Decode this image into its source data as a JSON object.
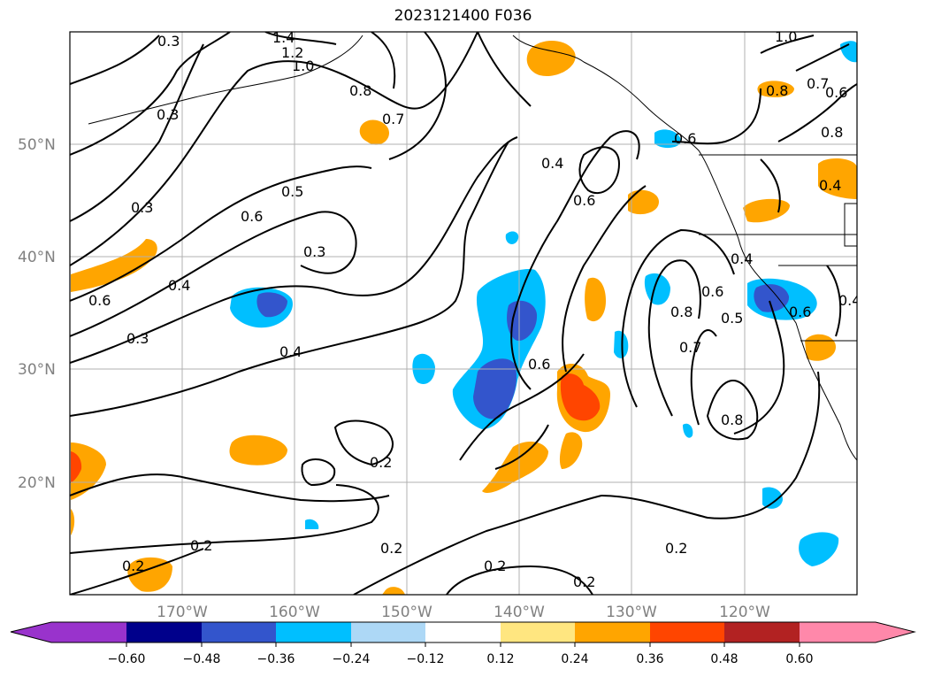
{
  "title": "2023121400 F036",
  "map": {
    "lat_labels": [
      "50°N",
      "40°N",
      "30°N",
      "20°N"
    ],
    "lon_labels": [
      "170°W",
      "160°W",
      "150°W",
      "140°W",
      "130°W",
      "120°W"
    ],
    "contour_labels": [
      {
        "text": "0.3"
      },
      {
        "text": "1.4"
      },
      {
        "text": "1.2"
      },
      {
        "text": "1.0"
      },
      {
        "text": "0.8"
      },
      {
        "text": "0.7"
      },
      {
        "text": "0.3"
      },
      {
        "text": "0.5"
      },
      {
        "text": "0.6"
      },
      {
        "text": "0.3"
      },
      {
        "text": "0.3"
      },
      {
        "text": "0.4"
      },
      {
        "text": "0.6"
      },
      {
        "text": "0.3"
      },
      {
        "text": "0.4"
      },
      {
        "text": "0.4"
      },
      {
        "text": "0.6"
      },
      {
        "text": "0.6"
      },
      {
        "text": "0.6"
      },
      {
        "text": "0.8"
      },
      {
        "text": "0.7"
      },
      {
        "text": "0.8"
      },
      {
        "text": "0.4"
      },
      {
        "text": "0.6"
      },
      {
        "text": "0.5"
      },
      {
        "text": "0.2"
      },
      {
        "text": "0.2"
      },
      {
        "text": "0.2"
      },
      {
        "text": "0.2"
      },
      {
        "text": "0.2"
      },
      {
        "text": "0.2"
      },
      {
        "text": "0.2"
      },
      {
        "text": "1.0"
      },
      {
        "text": "0.8"
      },
      {
        "text": "0.7"
      },
      {
        "text": "0.6"
      },
      {
        "text": "0.8"
      },
      {
        "text": "0.4"
      },
      {
        "text": "0.4"
      },
      {
        "text": "0.6"
      }
    ]
  },
  "colorbar": {
    "ticks": [
      "−0.60",
      "−0.48",
      "−0.36",
      "−0.24",
      "−0.12",
      "0.12",
      "0.24",
      "0.36",
      "0.48",
      "0.60"
    ],
    "colors": [
      "#9933cc",
      "#00008b",
      "#3355cc",
      "#00bfff",
      "#add8f6",
      "#ffffff",
      "#ffe680",
      "#ffa500",
      "#ff4500",
      "#b22222",
      "#ff88aa"
    ]
  }
}
